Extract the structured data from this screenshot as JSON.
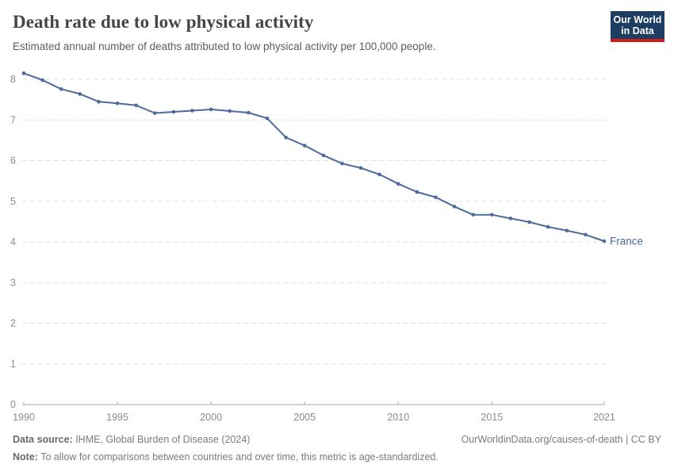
{
  "header": {
    "title": "Death rate due to low physical activity",
    "subtitle": "Estimated annual number of deaths attributed to low physical activity per 100,000 people."
  },
  "logo": {
    "line1": "Our World",
    "line2": "in Data",
    "bg_color": "#1d3d63",
    "stripe_color": "#d21e1b"
  },
  "chart_data": {
    "type": "line",
    "title": "Death rate due to low physical activity",
    "x": [
      1990,
      1991,
      1992,
      1993,
      1994,
      1995,
      1996,
      1997,
      1998,
      1999,
      2000,
      2001,
      2002,
      2003,
      2004,
      2005,
      2006,
      2007,
      2008,
      2009,
      2010,
      2011,
      2012,
      2013,
      2014,
      2015,
      2016,
      2017,
      2018,
      2019,
      2020,
      2021
    ],
    "series": [
      {
        "name": "France",
        "color": "#4c6a9c",
        "values": [
          8.15,
          7.98,
          7.76,
          7.64,
          7.45,
          7.41,
          7.36,
          7.17,
          7.2,
          7.23,
          7.26,
          7.22,
          7.18,
          7.04,
          6.57,
          6.37,
          6.13,
          5.93,
          5.82,
          5.66,
          5.43,
          5.23,
          5.1,
          4.87,
          4.67,
          4.67,
          4.58,
          4.49,
          4.37,
          4.28,
          4.18,
          4.02
        ]
      }
    ],
    "xticks": [
      1990,
      1995,
      2000,
      2005,
      2010,
      2015,
      2021
    ],
    "yticks": [
      0,
      1,
      2,
      3,
      4,
      5,
      6,
      7,
      8
    ],
    "xlim": [
      1990,
      2021
    ],
    "ylim": [
      0,
      8.2
    ],
    "xlabel": "",
    "ylabel": "",
    "grid": "horizontal-dashed",
    "legend_position": "end-of-line",
    "grid_color": "#e3e3e3",
    "axis_color": "#a8a8a8",
    "tick_label_color": "#8c8c8c"
  },
  "footer": {
    "source_label": "Data source:",
    "source_text": " IHME, Global Burden of Disease (2024)",
    "rights": "OurWorldinData.org/causes-of-death | CC BY",
    "note_label": "Note:",
    "note_text": " To allow for comparisons between countries and over time, this metric is age-standardized."
  }
}
